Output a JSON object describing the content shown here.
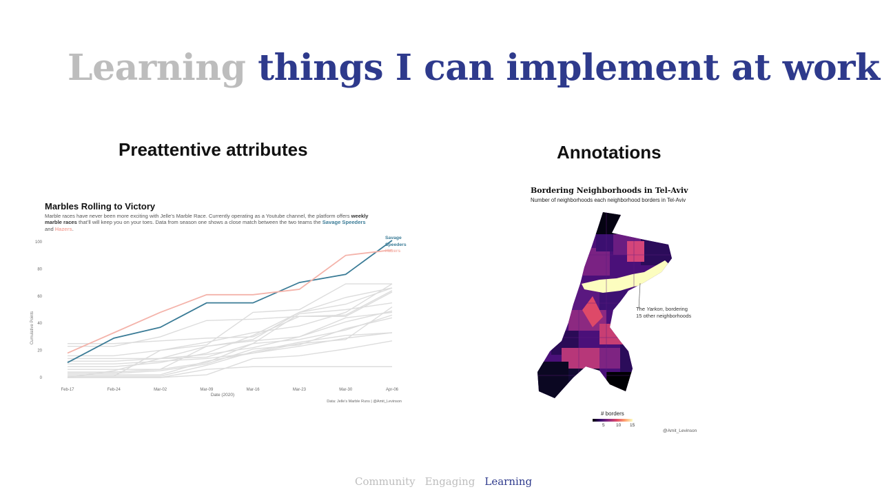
{
  "slide": {
    "title_muted": "Learning",
    "title_accent": "things I can implement at work",
    "left_heading": "Preattentive attributes",
    "right_heading": "Annotations"
  },
  "marbles_chart": {
    "title": "Marbles Rolling to Victory",
    "subtitle_p1": "Marble races have never been more exciting with Jelle’s Marble Race. Currently operating as a Youtube channel, the platform offers ",
    "subtitle_bold": "weekly marble races",
    "subtitle_p2": " that’ll will keep you on your toes. Data from season one shows a close match between the two teams the ",
    "team_a": "Savage Speeders",
    "subtitle_and": " and ",
    "team_b": "Hazers",
    "subtitle_end": ".",
    "caption": "Data: Jelle’s Marble Runs | @Amit_Levinson",
    "label_a_line1": "Savage",
    "label_a_line2": "Speeders",
    "label_b": "Hazers",
    "colors": {
      "savage": "#3a7b96",
      "hazers": "#f4b3aa",
      "others": "#dcdcdc"
    }
  },
  "chart_data": {
    "type": "line",
    "x": [
      "Feb-17",
      "Feb-24",
      "Mar-02",
      "Mar-09",
      "Mar-16",
      "Mar-23",
      "Mar-30",
      "Apr-06"
    ],
    "xlabel": "Date (2020)",
    "ylabel": "Cumulative Points",
    "ylim": [
      0,
      100
    ],
    "yticks": [
      0,
      20,
      40,
      60,
      80,
      100
    ],
    "series": [
      {
        "name": "Savage Speeders",
        "values": [
          11,
          29,
          37,
          55,
          55,
          70,
          76,
          101
        ],
        "highlight": true
      },
      {
        "name": "Hazers",
        "values": [
          18,
          33,
          48,
          61,
          61,
          65,
          90,
          94
        ],
        "highlight": true
      },
      {
        "values": [
          25,
          25,
          27,
          29,
          30,
          45,
          45,
          63
        ]
      },
      {
        "values": [
          23,
          23,
          30,
          42,
          43,
          45,
          46,
          64
        ]
      },
      {
        "values": [
          16,
          16,
          20,
          26,
          33,
          38,
          48,
          69
        ]
      },
      {
        "values": [
          14,
          14,
          14,
          17,
          22,
          30,
          41,
          49
        ]
      },
      {
        "values": [
          12,
          12,
          14,
          15,
          25,
          28,
          35,
          46
        ]
      },
      {
        "values": [
          10,
          10,
          12,
          14,
          18,
          25,
          28,
          52
        ]
      },
      {
        "values": [
          8,
          8,
          11,
          18,
          31,
          48,
          54,
          66
        ]
      },
      {
        "values": [
          6,
          6,
          6,
          23,
          27,
          30,
          44,
          48
        ]
      },
      {
        "values": [
          4,
          4,
          6,
          11,
          25,
          47,
          50,
          55
        ]
      },
      {
        "values": [
          3,
          3,
          5,
          10,
          21,
          24,
          36,
          44
        ]
      },
      {
        "values": [
          2,
          2,
          2,
          12,
          18,
          23,
          29,
          33
        ]
      },
      {
        "values": [
          1,
          1,
          1,
          9,
          19,
          26,
          31,
          33
        ]
      },
      {
        "values": [
          1,
          1,
          20,
          24,
          48,
          50,
          69,
          69
        ]
      },
      {
        "values": [
          0,
          0,
          0,
          2,
          14,
          16,
          21,
          27
        ]
      },
      {
        "values": [
          0,
          0,
          0,
          6,
          8,
          8,
          8,
          8
        ]
      },
      {
        "values": [
          0,
          5,
          14,
          23,
          28,
          48,
          59,
          66
        ]
      }
    ],
    "grid": false
  },
  "tel_aviv_map": {
    "title": "Bordering Neighborhoods in Tel-Aviv",
    "subtitle": "Number of neighborhoods each neighborhood borders in Tel-Aviv",
    "annotation_p1": "The ",
    "annotation_italic": "Yarkon",
    "annotation_p2": ", bordering",
    "annotation_line2": "15 other neighborhoods",
    "legend_title": "# borders",
    "legend_ticks": [
      "5",
      "10",
      "15"
    ],
    "credit": "@Amit_Levinson",
    "colors": {
      "low": "#000004",
      "mid": "#8c2981",
      "high": "#fcfdbf"
    }
  },
  "footer": {
    "items": [
      {
        "label": "Community",
        "active": false
      },
      {
        "label": "Engaging",
        "active": false
      },
      {
        "label": "Learning",
        "active": true
      }
    ]
  }
}
